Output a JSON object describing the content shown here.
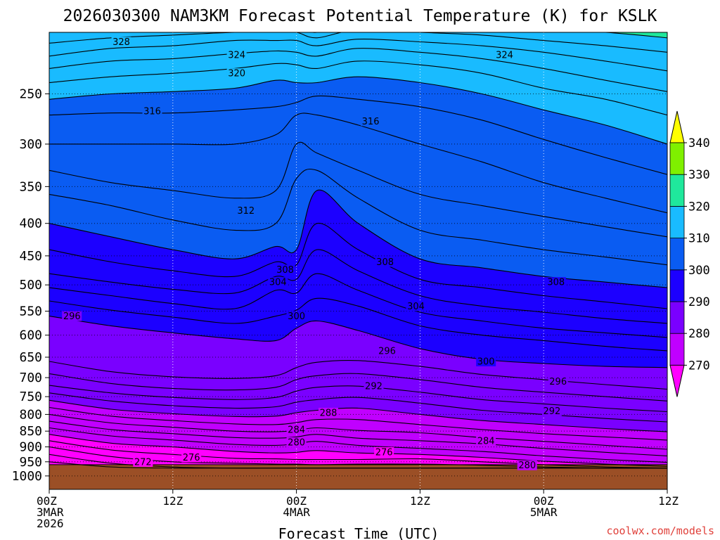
{
  "chart_data": {
    "type": "heatmap",
    "title": "2026030300 NAM3KM Forecast Potential Temperature (K) for KSLK",
    "xlabel": "Forecast Time (UTC)",
    "ylabel": "",
    "watermark": "coolwx.com/models",
    "x_range_hours": [
      0,
      60
    ],
    "y_axis": {
      "scale": "log-pressure",
      "units": "hPa",
      "range": [
        1050,
        200
      ],
      "ticks": [
        250,
        300,
        350,
        400,
        450,
        500,
        550,
        600,
        650,
        700,
        750,
        800,
        850,
        900,
        950,
        1000
      ]
    },
    "x_ticks": [
      {
        "hour": 0,
        "lines": [
          "00Z",
          "3MAR",
          "2026"
        ]
      },
      {
        "hour": 12,
        "lines": [
          "12Z"
        ]
      },
      {
        "hour": 24,
        "lines": [
          "00Z",
          "4MAR"
        ]
      },
      {
        "hour": 36,
        "lines": [
          "12Z"
        ]
      },
      {
        "hour": 48,
        "lines": [
          "00Z",
          "5MAR"
        ]
      },
      {
        "hour": 60,
        "lines": [
          "12Z"
        ]
      }
    ],
    "grid": true,
    "surface_pressure_hpa": 960,
    "colorbar": {
      "bounds": [
        270,
        280,
        290,
        300,
        310,
        320,
        330,
        340
      ],
      "labels": [
        "270",
        "280",
        "290",
        "300",
        "310",
        "320",
        "330",
        "340"
      ],
      "colors": [
        "#ff00ff",
        "#c000ff",
        "#7a00ff",
        "#1c00ff",
        "#0a5cf2",
        "#19bbff",
        "#1fe89c",
        "#7ff000"
      ]
    },
    "contour_interval_k": 2,
    "contour_times_hours": [
      0,
      6,
      12,
      18,
      22,
      24,
      26,
      30,
      36,
      42,
      48,
      54,
      60
    ],
    "contours": [
      {
        "theta": 272,
        "pressure": [
          950,
          968,
          972,
          972,
          972,
          972,
          972,
          972,
          972,
          972,
          972,
          972,
          972
        ]
      },
      {
        "theta": 274,
        "pressure": [
          925,
          955,
          968,
          972,
          972,
          972,
          972,
          972,
          972,
          972,
          972,
          972,
          972
        ]
      },
      {
        "theta": 276,
        "pressure": [
          900,
          932,
          950,
          955,
          958,
          958,
          960,
          958,
          958,
          962,
          968,
          972,
          972
        ]
      },
      {
        "theta": 278,
        "pressure": [
          880,
          910,
          925,
          938,
          940,
          942,
          942,
          942,
          940,
          950,
          960,
          968,
          972
        ]
      },
      {
        "theta": 280,
        "pressure": [
          860,
          888,
          900,
          915,
          920,
          918,
          912,
          920,
          925,
          935,
          948,
          958,
          966
        ]
      },
      {
        "theta": 282,
        "pressure": [
          840,
          865,
          878,
          892,
          895,
          890,
          882,
          895,
          905,
          915,
          930,
          942,
          952
        ]
      },
      {
        "theta": 284,
        "pressure": [
          820,
          845,
          858,
          870,
          872,
          868,
          860,
          872,
          880,
          890,
          905,
          918,
          930
        ]
      },
      {
        "theta": 286,
        "pressure": [
          800,
          825,
          838,
          850,
          852,
          848,
          840,
          848,
          855,
          870,
          882,
          895,
          908
        ]
      },
      {
        "theta": 288,
        "pressure": [
          780,
          805,
          818,
          828,
          830,
          824,
          815,
          815,
          830,
          845,
          858,
          868,
          878
        ]
      },
      {
        "theta": 290,
        "pressure": [
          760,
          785,
          798,
          806,
          805,
          795,
          788,
          782,
          800,
          818,
          830,
          842,
          852
        ]
      },
      {
        "theta": 292,
        "pressure": [
          740,
          762,
          775,
          782,
          778,
          765,
          758,
          752,
          768,
          788,
          800,
          812,
          822
        ]
      },
      {
        "theta": 294,
        "pressure": [
          720,
          740,
          752,
          758,
          752,
          735,
          725,
          722,
          738,
          758,
          770,
          782,
          792
        ]
      },
      {
        "theta": 296,
        "pressure": [
          690,
          715,
          728,
          732,
          725,
          705,
          695,
          690,
          705,
          725,
          738,
          750,
          762
        ]
      },
      {
        "theta": 298,
        "pressure": [
          660,
          685,
          698,
          702,
          695,
          675,
          662,
          658,
          672,
          692,
          705,
          718,
          730
        ]
      },
      {
        "theta": 300,
        "pressure": [
          560,
          580,
          595,
          608,
          612,
          585,
          570,
          590,
          630,
          655,
          665,
          672,
          675
        ]
      },
      {
        "theta": 302,
        "pressure": [
          530,
          548,
          562,
          575,
          560,
          548,
          525,
          540,
          580,
          600,
          612,
          625,
          635
        ]
      },
      {
        "theta": 304,
        "pressure": [
          505,
          520,
          535,
          545,
          510,
          515,
          480,
          510,
          552,
          570,
          585,
          595,
          605
        ]
      },
      {
        "theta": 306,
        "pressure": [
          480,
          495,
          508,
          515,
          485,
          490,
          440,
          475,
          520,
          540,
          552,
          565,
          575
        ]
      },
      {
        "theta": 308,
        "pressure": [
          440,
          460,
          475,
          485,
          460,
          465,
          400,
          440,
          490,
          505,
          520,
          532,
          545
        ]
      },
      {
        "theta": 310,
        "pressure": [
          400,
          420,
          440,
          455,
          435,
          440,
          355,
          400,
          455,
          470,
          485,
          495,
          505
        ]
      },
      {
        "theta": 312,
        "pressure": [
          360,
          375,
          395,
          410,
          400,
          340,
          330,
          365,
          410,
          425,
          440,
          452,
          465
        ]
      },
      {
        "theta": 314,
        "pressure": [
          330,
          345,
          355,
          365,
          355,
          300,
          310,
          330,
          360,
          375,
          390,
          405,
          420
        ]
      },
      {
        "theta": 316,
        "pressure": [
          300,
          300,
          300,
          300,
          290,
          270,
          270,
          280,
          300,
          320,
          345,
          365,
          385
        ]
      },
      {
        "theta": 318,
        "pressure": [
          270,
          268,
          268,
          265,
          262,
          258,
          252,
          255,
          262,
          275,
          295,
          315,
          335
        ]
      },
      {
        "theta": 320,
        "pressure": [
          255,
          250,
          248,
          245,
          238,
          240,
          240,
          235,
          240,
          250,
          265,
          280,
          300
        ]
      },
      {
        "theta": 322,
        "pressure": [
          240,
          235,
          232,
          228,
          224,
          225,
          228,
          222,
          225,
          232,
          245,
          255,
          270
        ]
      },
      {
        "theta": 324,
        "pressure": [
          228,
          222,
          220,
          216,
          214,
          215,
          218,
          212,
          215,
          220,
          228,
          238,
          248
        ]
      },
      {
        "theta": 326,
        "pressure": [
          218,
          212,
          210,
          206,
          206,
          206,
          210,
          205,
          207,
          210,
          215,
          222,
          230
        ]
      },
      {
        "theta": 328,
        "pressure": [
          208,
          204,
          202,
          200,
          200,
          200,
          204,
          198,
          200,
          202,
          206,
          210,
          215
        ]
      },
      {
        "theta": 330,
        "pressure": [
          200,
          198,
          196,
          194,
          195,
          196,
          200,
          192,
          194,
          196,
          198,
          200,
          204
        ]
      },
      {
        "theta": 332,
        "pressure": [
          192,
          192,
          190,
          190,
          192,
          194,
          197,
          188,
          190,
          192,
          194,
          195,
          197
        ]
      }
    ],
    "labels": [
      {
        "text": "328",
        "hour": 7.0,
        "p": 207
      },
      {
        "text": "324",
        "hour": 18.2,
        "p": 217
      },
      {
        "text": "324",
        "hour": 44.2,
        "p": 217
      },
      {
        "text": "320",
        "hour": 18.2,
        "p": 232
      },
      {
        "text": "316",
        "hour": 10.0,
        "p": 266
      },
      {
        "text": "316",
        "hour": 31.2,
        "p": 276
      },
      {
        "text": "312",
        "hour": 19.1,
        "p": 382
      },
      {
        "text": "308",
        "hour": 22.9,
        "p": 473
      },
      {
        "text": "308",
        "hour": 32.6,
        "p": 460
      },
      {
        "text": "308",
        "hour": 49.2,
        "p": 495
      },
      {
        "text": "304",
        "hour": 22.2,
        "p": 495
      },
      {
        "text": "304",
        "hour": 35.6,
        "p": 540
      },
      {
        "text": "300",
        "hour": 24.0,
        "p": 560
      },
      {
        "text": "300",
        "hour": 42.4,
        "p": 660
      },
      {
        "text": "296",
        "hour": 2.2,
        "p": 560
      },
      {
        "text": "296",
        "hour": 32.8,
        "p": 635
      },
      {
        "text": "296",
        "hour": 49.4,
        "p": 710
      },
      {
        "text": "292",
        "hour": 31.5,
        "p": 722
      },
      {
        "text": "292",
        "hour": 48.8,
        "p": 790
      },
      {
        "text": "288",
        "hour": 27.1,
        "p": 795
      },
      {
        "text": "284",
        "hour": 24.0,
        "p": 845
      },
      {
        "text": "284",
        "hour": 42.4,
        "p": 880
      },
      {
        "text": "280",
        "hour": 24.0,
        "p": 885
      },
      {
        "text": "276",
        "hour": 13.8,
        "p": 935
      },
      {
        "text": "276",
        "hour": 32.5,
        "p": 917
      },
      {
        "text": "280",
        "hour": 46.4,
        "p": 962
      },
      {
        "text": "272",
        "hour": 9.1,
        "p": 950
      }
    ]
  }
}
